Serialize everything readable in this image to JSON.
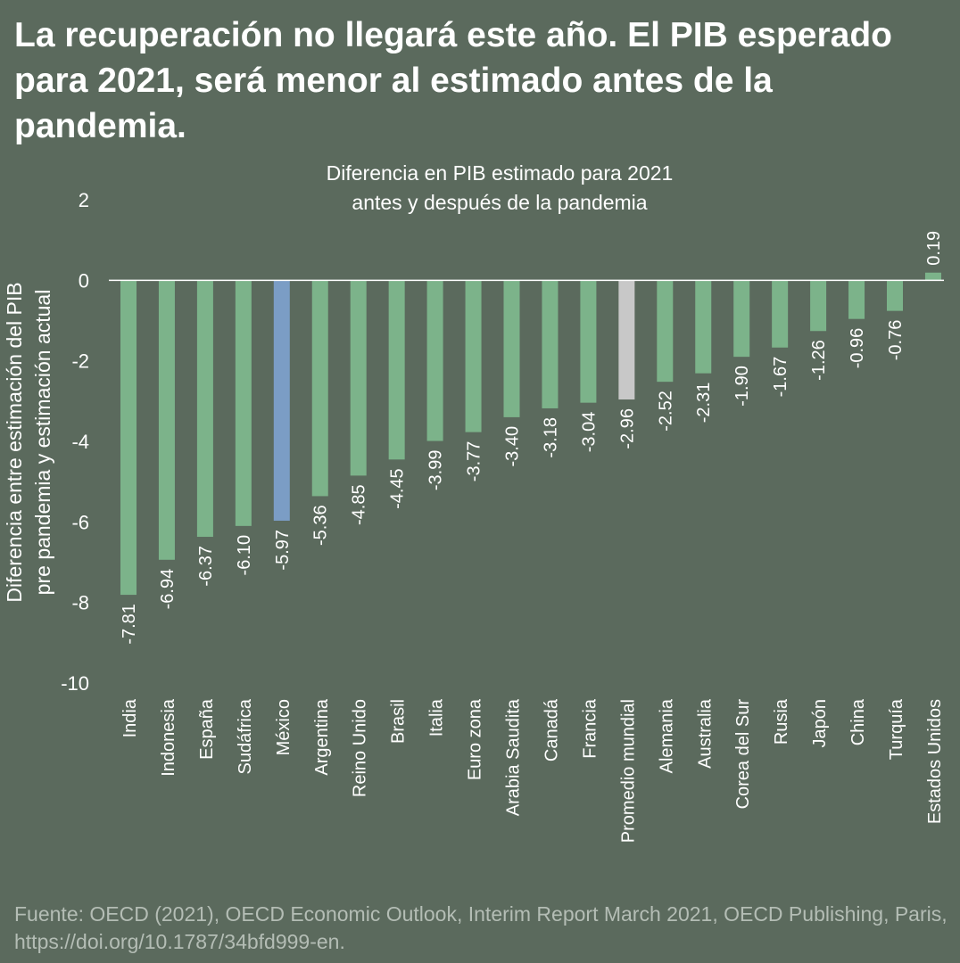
{
  "headline": "La recuperación no llegará este año. El PIB esperado para 2021, será menor al estimado antes de la pandemia.",
  "source": "Fuente: OECD (2021), OECD Economic Outlook, Interim Report March 2021, OECD Publishing, Paris, https://doi.org/10.1787/34bfd999-en.",
  "colors": {
    "background": "#5b6a5d",
    "bar": "#7cb38a",
    "highlight": "#7b9dc5",
    "average": "#c8c8c8",
    "text": "#ffffff"
  },
  "chart_data": {
    "type": "bar",
    "title_lines": [
      "Diferencia en PIB estimado para 2021",
      "antes y después de la pandemia"
    ],
    "ylabel_lines": [
      "Diferencia entre estimación del PIB",
      "pre pandemia y estimación actual"
    ],
    "xlabel": "",
    "ylim": [
      -10,
      2
    ],
    "yticks": [
      2,
      0,
      -2,
      -4,
      -6,
      -8,
      -10
    ],
    "tick_labels": [
      "2",
      "0",
      "-2",
      "-4",
      "-6",
      "-8",
      "-10"
    ],
    "categories": [
      "India",
      "Indonesia",
      "España",
      "Sudáfrica",
      "México",
      "Argentina",
      "Reino Unido",
      "Brasil",
      "Italia",
      "Euro zona",
      "Arabia Saudita",
      "Canadá",
      "Francia",
      "Promedio mundial",
      "Alemania",
      "Australia",
      "Corea del Sur",
      "Rusia",
      "Japón",
      "China",
      "Turquía",
      "Estados Unidos"
    ],
    "values": [
      -7.81,
      -6.94,
      -6.37,
      -6.1,
      -5.97,
      -5.36,
      -4.85,
      -4.45,
      -3.99,
      -3.77,
      -3.4,
      -3.18,
      -3.04,
      -2.96,
      -2.52,
      -2.31,
      -1.9,
      -1.67,
      -1.26,
      -0.96,
      -0.76,
      0.19
    ],
    "labels": [
      "-7.81",
      "-6.94",
      "-6.37",
      "-6.10",
      "-5.97",
      "-5.36",
      "-4.85",
      "-4.45",
      "-3.99",
      "-3.77",
      "-3.40",
      "-3.18",
      "-3.04",
      "-2.96",
      "-2.52",
      "-2.31",
      "-1.90",
      "-1.67",
      "-1.26",
      "-0.96",
      "-0.76",
      "0.19"
    ],
    "highlight_category": "México",
    "average_category": "Promedio mundial"
  }
}
